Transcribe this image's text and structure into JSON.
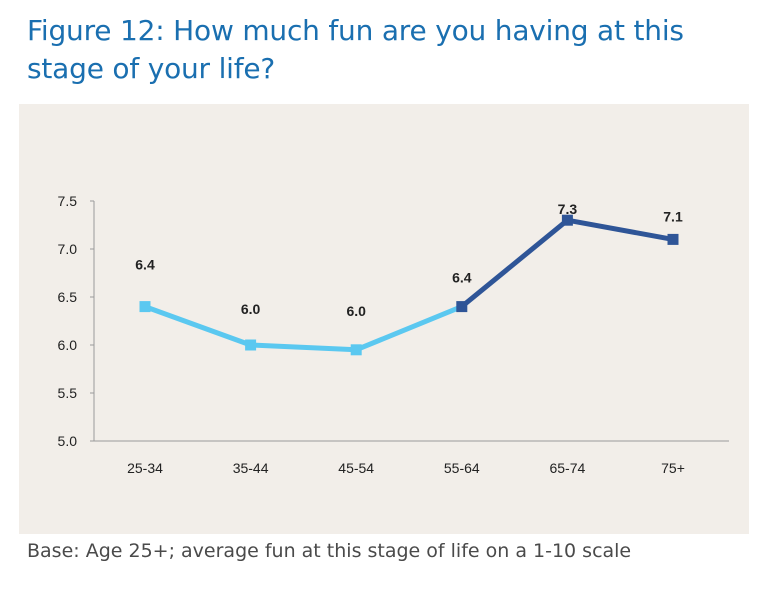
{
  "page": {
    "title": "Figure 12: How much fun are you having at this stage of your life?",
    "footnote": "Base: Age 25+; average fun at this stage of life on a 1-10 scale",
    "title_color": "#1a6fb0",
    "panel_color": "#f2eee9"
  },
  "chart_data": {
    "type": "line",
    "title": "",
    "xlabel": "",
    "ylabel": "",
    "categories": [
      "25-34",
      "35-44",
      "45-54",
      "55-64",
      "65-74",
      "75+"
    ],
    "values": [
      6.4,
      6.0,
      5.95,
      6.4,
      7.3,
      7.1
    ],
    "data_labels": [
      "6.4",
      "6.0",
      "6.0",
      "6.4",
      "7.3",
      "7.1"
    ],
    "ylim": [
      5.0,
      7.5
    ],
    "yticks": [
      "5.0",
      "5.5",
      "6.0",
      "6.5",
      "7.0",
      "7.5"
    ],
    "segment_colors": [
      "#5bc8f0",
      "#5bc8f0",
      "#5bc8f0",
      "#2f5597",
      "#2f5597"
    ],
    "marker_colors": [
      "#5bc8f0",
      "#5bc8f0",
      "#5bc8f0",
      "#2f5597",
      "#2f5597",
      "#2f5597"
    ],
    "grid": false,
    "legend": "none"
  }
}
